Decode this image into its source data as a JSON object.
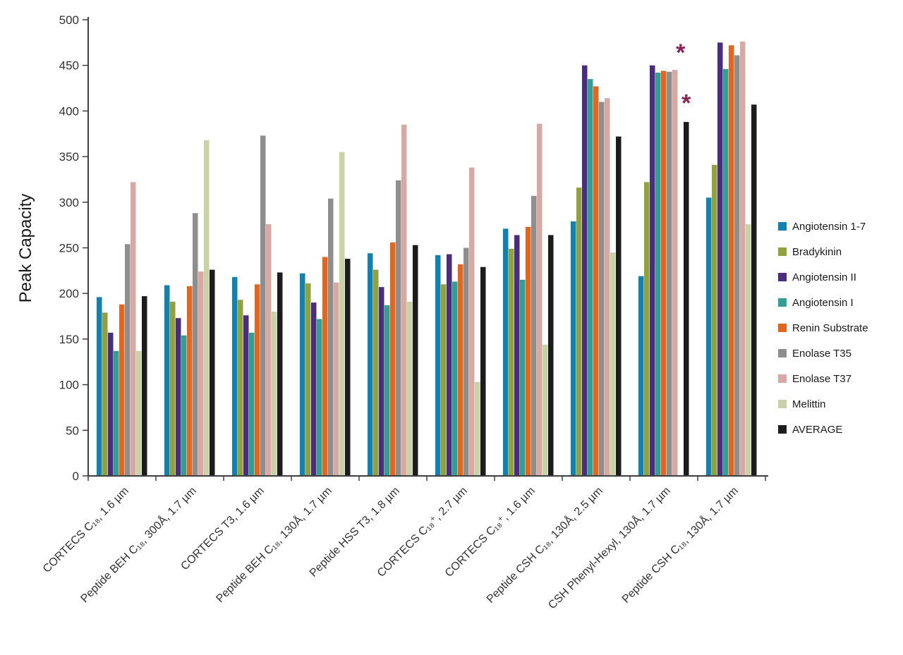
{
  "chart_data": {
    "type": "bar",
    "title": "",
    "xlabel": "",
    "ylabel": "Peak Capacity",
    "ylim": [
      0,
      500
    ],
    "ytick_step": 50,
    "grid": false,
    "legend_position": "right",
    "categories": [
      "CORTECS C₁₈, 1.6 µm",
      "Peptide BEH C₁₈, 300Å, 1.7 µm",
      "CORTECS T3, 1.6 µm",
      "Peptide BEH C₁₈, 130Å, 1.7 µm",
      "Peptide HSS T3, 1.8 µm",
      "CORTECS C₁₈⁺, 2.7 µm",
      "CORTECS C₁₈⁺, 1.6 µm",
      "Peptide CSH C₁₈, 130Å, 2.5 µm",
      "CSH Phenyl-Hexyl, 130Å, 1.7 µm",
      "Peptide CSH C₁₈, 130Å, 1.7 µm"
    ],
    "series": [
      {
        "name": "Angiotensin 1-7",
        "color": "#1081b0",
        "values": [
          196,
          209,
          218,
          222,
          244,
          242,
          271,
          279,
          219,
          305
        ]
      },
      {
        "name": "Bradykinin",
        "color": "#8fa23c",
        "values": [
          179,
          191,
          193,
          211,
          226,
          210,
          249,
          316,
          322,
          341
        ]
      },
      {
        "name": "Angiotensin II",
        "color": "#4b2d7f",
        "values": [
          157,
          173,
          176,
          190,
          207,
          243,
          264,
          450,
          450,
          475
        ]
      },
      {
        "name": "Angiotensin I",
        "color": "#2fa093",
        "values": [
          137,
          154,
          157,
          172,
          187,
          213,
          215,
          435,
          442,
          446
        ]
      },
      {
        "name": "Renin Substrate",
        "color": "#e4661e",
        "values": [
          188,
          208,
          210,
          240,
          256,
          232,
          273,
          427,
          444,
          472
        ]
      },
      {
        "name": "Enolase T35",
        "color": "#8e8e8e",
        "values": [
          254,
          288,
          373,
          304,
          324,
          250,
          307,
          410,
          443,
          461
        ]
      },
      {
        "name": "Enolase T37",
        "color": "#d9a8a2",
        "values": [
          322,
          224,
          276,
          212,
          385,
          338,
          386,
          414,
          445,
          476
        ]
      },
      {
        "name": "Melittin",
        "color": "#c8d2a4",
        "values": [
          137,
          368,
          180,
          355,
          191,
          103,
          144,
          245,
          null,
          276
        ]
      },
      {
        "name": "AVERAGE",
        "color": "#1c1c1c",
        "values": [
          197,
          226,
          223,
          238,
          253,
          229,
          264,
          372,
          388,
          407
        ]
      }
    ],
    "annotations": [
      {
        "symbol": "*",
        "category_index": 8,
        "series": "Melittin",
        "value": 455
      },
      {
        "symbol": "*",
        "category_index": 8,
        "series": "AVERAGE",
        "value": 400
      }
    ],
    "annotation_color": "#8b2158"
  }
}
